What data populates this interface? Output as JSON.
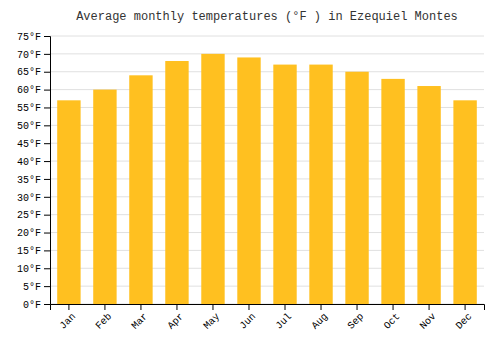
{
  "chart_data": {
    "type": "bar",
    "title": "Average monthly temperatures (°F ) in Ezequiel Montes",
    "categories": [
      "Jan",
      "Feb",
      "Mar",
      "Apr",
      "May",
      "Jun",
      "Jul",
      "Aug",
      "Sep",
      "Oct",
      "Nov",
      "Dec"
    ],
    "values": [
      57,
      60,
      64,
      68,
      70,
      69,
      67,
      67,
      65,
      63,
      61,
      57
    ],
    "color": "#FFC020",
    "ylim": [
      0,
      75
    ],
    "yticks": [
      {
        "value": 0,
        "label": "0°F"
      },
      {
        "value": 5,
        "label": "5°F"
      },
      {
        "value": 10,
        "label": "10°F"
      },
      {
        "value": 15,
        "label": "15°F"
      },
      {
        "value": 20,
        "label": "20°F"
      },
      {
        "value": 25,
        "label": "25°F"
      },
      {
        "value": 30,
        "label": "30°F"
      },
      {
        "value": 35,
        "label": "35°F"
      },
      {
        "value": 40,
        "label": "40°F"
      },
      {
        "value": 45,
        "label": "45°F"
      },
      {
        "value": 50,
        "label": "50°F"
      },
      {
        "value": 55,
        "label": "55°F"
      },
      {
        "value": 60,
        "label": "60°F"
      },
      {
        "value": 65,
        "label": "65°F"
      },
      {
        "value": 70,
        "label": "70°F"
      },
      {
        "value": 75,
        "label": "75°F"
      }
    ],
    "grid": true
  }
}
